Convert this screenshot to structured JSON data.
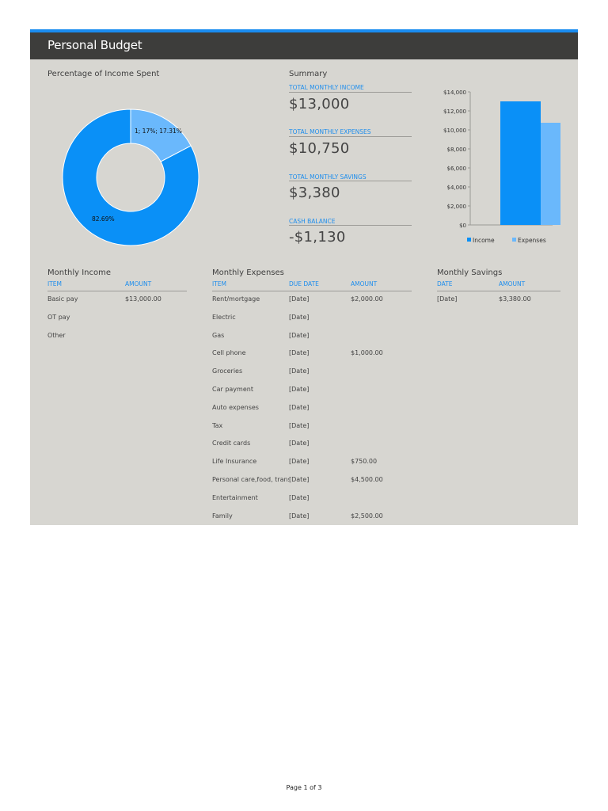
{
  "header": {
    "title": "Personal Budget"
  },
  "donut": {
    "title": "Percentage of Income Spent",
    "slices": [
      {
        "label": "1; 17%; 17.31%",
        "value": 17.31,
        "color": "#6ab8fc"
      },
      {
        "label": "82.69%",
        "value": 82.69,
        "color": "#0a90f7"
      }
    ]
  },
  "summary": {
    "title": "Summary",
    "items": [
      {
        "label": "TOTAL MONTHLY INCOME",
        "value": "$13,000"
      },
      {
        "label": "TOTAL MONTHLY EXPENSES",
        "value": "$10,750"
      },
      {
        "label": "TOTAL MONTHLY SAVINGS",
        "value": "$3,380"
      },
      {
        "label": "CASH BALANCE",
        "value": "-$1,130"
      }
    ]
  },
  "chart_data": {
    "type": "bar",
    "categories": [
      "Income",
      "Expenses"
    ],
    "values": [
      13000,
      10750
    ],
    "colors": [
      "#0a90f7",
      "#6ab8fc"
    ],
    "ylim": [
      0,
      14000
    ],
    "yticks": [
      "$0",
      "$2,000",
      "$4,000",
      "$6,000",
      "$8,000",
      "$10,000",
      "$12,000",
      "$14,000"
    ],
    "legend": [
      "Income",
      "Expenses"
    ],
    "legend_position": "bottom"
  },
  "income": {
    "title": "Monthly Income",
    "headers": [
      "ITEM",
      "AMOUNT"
    ],
    "rows": [
      {
        "item": "Basic pay",
        "amount": "$13,000.00"
      },
      {
        "item": "OT pay",
        "amount": ""
      },
      {
        "item": "Other",
        "amount": ""
      }
    ]
  },
  "expenses": {
    "title": "Monthly Expenses",
    "headers": [
      "ITEM",
      "DUE DATE",
      "AMOUNT"
    ],
    "rows": [
      {
        "item": "Rent/mortgage",
        "date": "[Date]",
        "amount": "$2,000.00"
      },
      {
        "item": "Electric",
        "date": "[Date]",
        "amount": ""
      },
      {
        "item": "Gas",
        "date": "[Date]",
        "amount": ""
      },
      {
        "item": "Cell phone",
        "date": "[Date]",
        "amount": "$1,000.00"
      },
      {
        "item": "Groceries",
        "date": "[Date]",
        "amount": ""
      },
      {
        "item": "Car payment",
        "date": "[Date]",
        "amount": ""
      },
      {
        "item": "Auto expenses",
        "date": "[Date]",
        "amount": ""
      },
      {
        "item": "Tax",
        "date": "[Date]",
        "amount": ""
      },
      {
        "item": "Credit cards",
        "date": "[Date]",
        "amount": ""
      },
      {
        "item": "Life Insurance",
        "date": "[Date]",
        "amount": "$750.00"
      },
      {
        "item": "Personal care,food, transport",
        "date": "[Date]",
        "amount": "$4,500.00"
      },
      {
        "item": "Entertainment",
        "date": "[Date]",
        "amount": ""
      },
      {
        "item": "Family",
        "date": "[Date]",
        "amount": "$2,500.00"
      }
    ]
  },
  "savings": {
    "title": "Monthly Savings",
    "headers": [
      "DATE",
      "AMOUNT"
    ],
    "rows": [
      {
        "date": "[Date]",
        "amount": "$3,380.00"
      }
    ]
  },
  "footer": {
    "page": "Page 1 of 3"
  }
}
